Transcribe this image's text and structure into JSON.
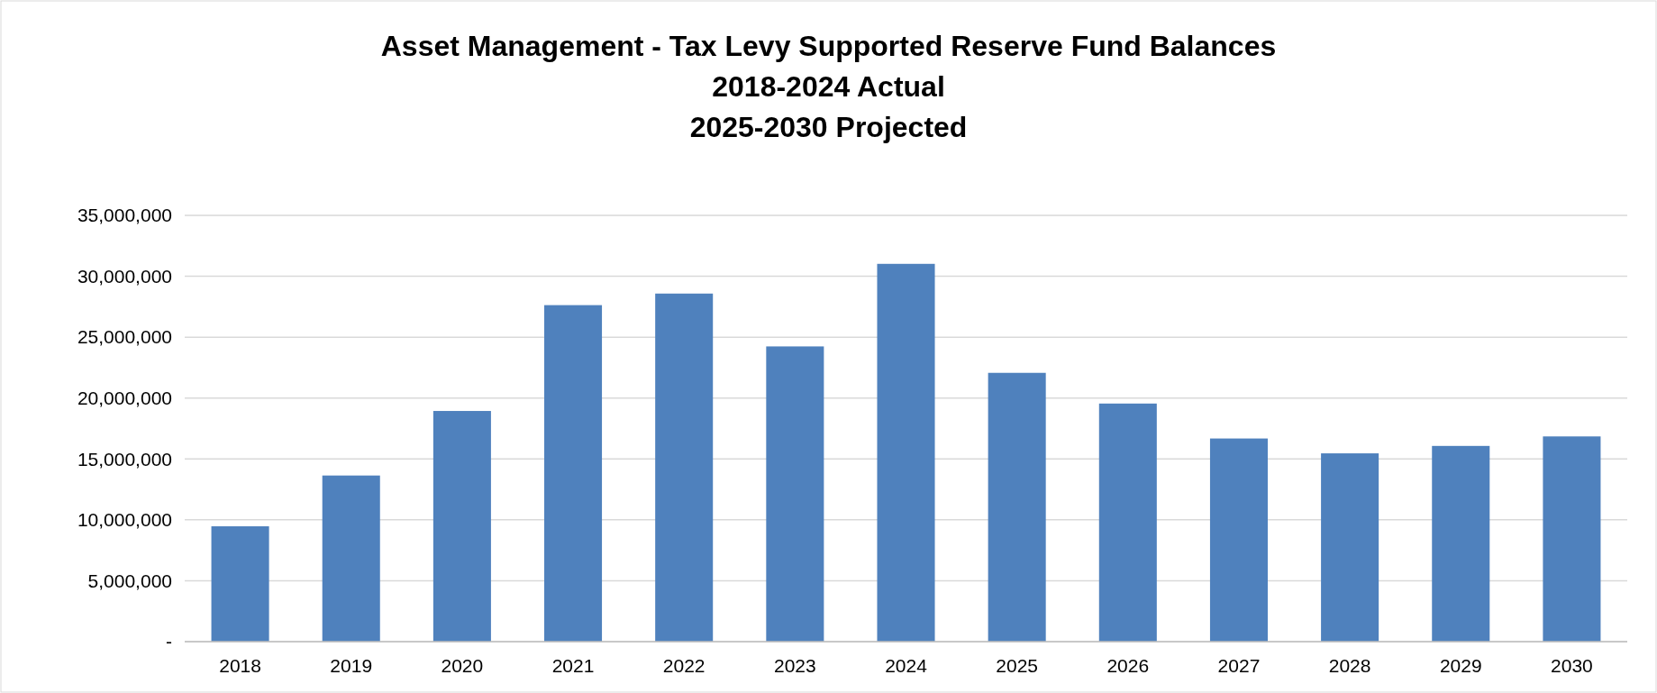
{
  "chart_data": {
    "type": "bar",
    "title": "Asset Management - Tax Levy Supported Reserve Fund Balances\n2018-2024 Actual\n2025-2030 Projected",
    "categories": [
      "2018",
      "2019",
      "2020",
      "2021",
      "2022",
      "2023",
      "2024",
      "2025",
      "2026",
      "2027",
      "2028",
      "2029",
      "2030"
    ],
    "values": [
      9470000,
      13640000,
      18940000,
      27630000,
      28580000,
      24240000,
      31020000,
      22070000,
      19550000,
      16680000,
      15460000,
      16070000,
      16850000
    ],
    "color": "#4f81bd",
    "ylim": [
      0,
      35000000
    ],
    "yticks": [
      {
        "value": 0,
        "label": "-"
      },
      {
        "value": 5000000,
        "label": "5,000,000"
      },
      {
        "value": 10000000,
        "label": "10,000,000"
      },
      {
        "value": 15000000,
        "label": "15,000,000"
      },
      {
        "value": 20000000,
        "label": "20,000,000"
      },
      {
        "value": 25000000,
        "label": "25,000,000"
      },
      {
        "value": 30000000,
        "label": "30,000,000"
      },
      {
        "value": 35000000,
        "label": "35,000,000"
      }
    ],
    "grid": "y"
  }
}
